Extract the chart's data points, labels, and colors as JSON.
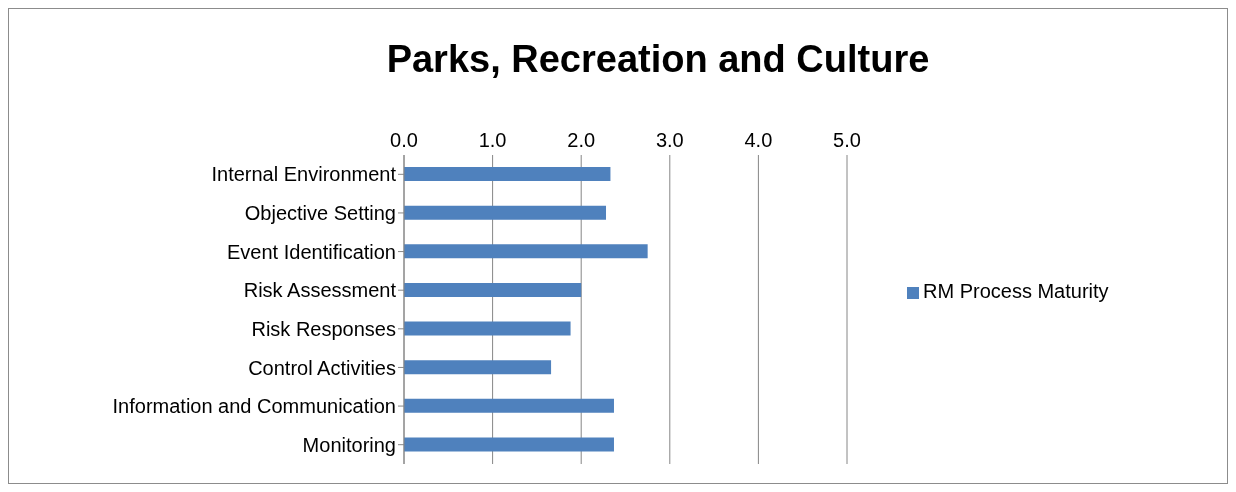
{
  "chart_data": {
    "type": "bar",
    "orientation": "horizontal",
    "title": "Parks, Recreation and Culture",
    "categories": [
      "Internal Environment",
      "Objective Setting",
      "Event Identification",
      "Risk Assessment",
      "Risk Responses",
      "Control Activities",
      "Information and Communication",
      "Monitoring"
    ],
    "series": [
      {
        "name": "RM Process Maturity",
        "color": "#4f81bd",
        "values": [
          2.33,
          2.28,
          2.75,
          2.0,
          1.88,
          1.66,
          2.37,
          2.37
        ]
      }
    ],
    "xlim": [
      0,
      5
    ],
    "xticks": [
      {
        "value": 0,
        "label": "0.0"
      },
      {
        "value": 1,
        "label": "1.0"
      },
      {
        "value": 2,
        "label": "2.0"
      },
      {
        "value": 3,
        "label": "3.0"
      },
      {
        "value": 4,
        "label": "4.0"
      },
      {
        "value": 5,
        "label": "5.0"
      }
    ],
    "grid": "x",
    "legend": "right"
  }
}
